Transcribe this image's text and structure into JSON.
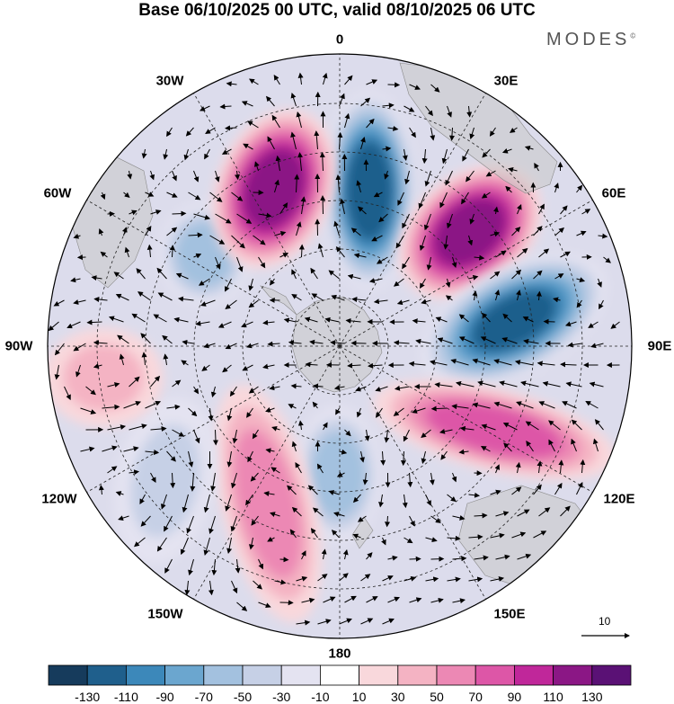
{
  "title": "Base 06/10/2025 00 UTC, valid 08/10/2025 06 UTC",
  "brand": "MODES",
  "brand_mark": "©",
  "longitude_labels": [
    "0",
    "30E",
    "60E",
    "90E",
    "120E",
    "150E",
    "180",
    "150W",
    "120W",
    "90W",
    "60W",
    "30W"
  ],
  "reference_vector_label": "10",
  "colorbar": {
    "labels": [
      "-130",
      "-110",
      "-90",
      "-70",
      "-50",
      "-30",
      "-10",
      "10",
      "30",
      "50",
      "70",
      "90",
      "110",
      "130"
    ],
    "colors": [
      "#163b5c",
      "#1f5f8c",
      "#3c88ba",
      "#6ba6cf",
      "#a3c1df",
      "#c6d0e6",
      "#e4e3f1",
      "#ffffff",
      "#f9d8dc",
      "#f4b3c3",
      "#ec88b4",
      "#dd56a7",
      "#c0279a",
      "#8b1785",
      "#5a1175"
    ]
  },
  "anomaly_centers": [
    {
      "name": "negative-center-0",
      "value": -130
    },
    {
      "name": "positive-center-20E",
      "value": 130
    },
    {
      "name": "negative-center-80E",
      "value": -120
    },
    {
      "name": "positive-center-140E",
      "value": 90
    },
    {
      "name": "negative-center-180",
      "value": -70
    },
    {
      "name": "positive-center-200",
      "value": 70
    },
    {
      "name": "negative-center-130W",
      "value": -40
    },
    {
      "name": "positive-center-100W",
      "value": 40
    },
    {
      "name": "negative-center-60W",
      "value": -70
    },
    {
      "name": "positive-center-30W",
      "value": 130
    }
  ]
}
